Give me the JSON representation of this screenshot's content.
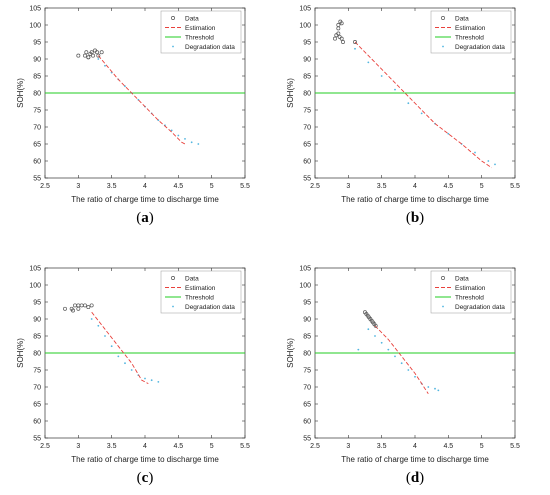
{
  "chart_data": [
    {
      "type": "scatter",
      "panel_label": "a",
      "xlabel": "The ratio of charge time to discharge time",
      "ylabel": "SOH(%)",
      "xlim": [
        2.5,
        5.5
      ],
      "ylim": [
        55,
        105
      ],
      "xticks": [
        2.5,
        3,
        3.5,
        4,
        4.5,
        5,
        5.5
      ],
      "yticks": [
        55,
        60,
        65,
        70,
        75,
        80,
        85,
        90,
        95,
        100,
        105
      ],
      "threshold": 80,
      "legend": [
        "Data",
        "Estimation",
        "Threshold",
        "Degradation data"
      ],
      "legend_position": "top-right",
      "series": [
        {
          "name": "Data",
          "x": [
            3.0,
            3.1,
            3.12,
            3.15,
            3.18,
            3.2,
            3.22,
            3.25,
            3.28,
            3.3,
            3.15,
            3.35
          ],
          "y": [
            91,
            91,
            92,
            90.5,
            91.5,
            92,
            91,
            92.5,
            92,
            91,
            90.5,
            92
          ]
        },
        {
          "name": "Estimation",
          "x": [
            3.3,
            3.6,
            3.9,
            4.2,
            4.4,
            4.55,
            4.6
          ],
          "y": [
            91,
            84,
            78,
            72,
            68.5,
            65.5,
            65
          ]
        },
        {
          "name": "Threshold",
          "x": [
            2.5,
            5.5
          ],
          "y": [
            80,
            80
          ]
        },
        {
          "name": "Degradation data",
          "x": [
            3.3,
            3.4,
            3.5,
            3.6,
            3.7,
            3.8,
            3.9,
            4.0,
            4.1,
            4.2,
            4.3,
            4.4,
            4.5,
            4.6,
            4.7,
            4.8
          ],
          "y": [
            90,
            88,
            86,
            84,
            82,
            80,
            78,
            76,
            74,
            72,
            70.5,
            69,
            67.5,
            66.5,
            65.5,
            65
          ]
        }
      ]
    },
    {
      "type": "scatter",
      "panel_label": "b",
      "xlabel": "The ratio of charge time to discharge time",
      "ylabel": "SOH(%)",
      "xlim": [
        2.5,
        5.5
      ],
      "ylim": [
        55,
        105
      ],
      "xticks": [
        2.5,
        3,
        3.5,
        4,
        4.5,
        5,
        5.5
      ],
      "yticks": [
        55,
        60,
        65,
        70,
        75,
        80,
        85,
        90,
        95,
        100,
        105
      ],
      "threshold": 80,
      "legend": [
        "Data",
        "Estimation",
        "Threshold",
        "Degradation data"
      ],
      "legend_position": "top-right",
      "series": [
        {
          "name": "Data",
          "x": [
            2.8,
            2.82,
            2.85,
            2.85,
            2.88,
            2.9,
            2.85,
            2.87,
            2.9,
            2.92,
            3.1
          ],
          "y": [
            96,
            97,
            99,
            100,
            101,
            100.5,
            97.5,
            96.5,
            96,
            95,
            95
          ]
        },
        {
          "name": "Estimation",
          "x": [
            3.1,
            3.5,
            3.9,
            4.3,
            4.7,
            5.0,
            5.15
          ],
          "y": [
            95,
            87,
            79,
            71,
            65,
            60,
            58
          ]
        },
        {
          "name": "Threshold",
          "x": [
            2.5,
            5.5
          ],
          "y": [
            80,
            80
          ]
        },
        {
          "name": "Degradation data",
          "x": [
            3.1,
            3.3,
            3.5,
            3.7,
            3.9,
            4.1,
            4.3,
            4.5,
            4.7,
            4.9,
            5.1,
            5.2
          ],
          "y": [
            93,
            89,
            85,
            81,
            77,
            74,
            71,
            68,
            65,
            62.5,
            60,
            59
          ]
        }
      ]
    },
    {
      "type": "scatter",
      "panel_label": "c",
      "xlabel": "The ratio of charge time to discharge time",
      "ylabel": "SOH(%)",
      "xlim": [
        2.5,
        5.5
      ],
      "ylim": [
        55,
        105
      ],
      "xticks": [
        2.5,
        3,
        3.5,
        4,
        4.5,
        5,
        5.5
      ],
      "yticks": [
        55,
        60,
        65,
        70,
        75,
        80,
        85,
        90,
        95,
        100,
        105
      ],
      "threshold": 80,
      "legend": [
        "Data",
        "Estimation",
        "Threshold",
        "Degradation data"
      ],
      "legend_position": "top-right",
      "series": [
        {
          "name": "Data",
          "x": [
            2.8,
            2.9,
            2.95,
            3.0,
            3.05,
            3.1,
            3.15,
            3.2,
            3.0,
            2.92
          ],
          "y": [
            93,
            93,
            94,
            94,
            94,
            94,
            93.5,
            94,
            93,
            92.5
          ]
        },
        {
          "name": "Estimation",
          "x": [
            3.2,
            3.4,
            3.6,
            3.8,
            3.95,
            4.05
          ],
          "y": [
            92,
            87,
            82,
            77,
            72,
            71
          ]
        },
        {
          "name": "Threshold",
          "x": [
            2.5,
            5.5
          ],
          "y": [
            80,
            80
          ]
        },
        {
          "name": "Degradation data",
          "x": [
            3.2,
            3.3,
            3.4,
            3.5,
            3.6,
            3.7,
            3.8,
            3.9,
            4.0,
            4.1,
            4.2
          ],
          "y": [
            90,
            88,
            85,
            82,
            79,
            77,
            75,
            73.5,
            72.5,
            72,
            71.5
          ]
        }
      ]
    },
    {
      "type": "scatter",
      "panel_label": "d",
      "xlabel": "The ratio of charge time to discharge time",
      "ylabel": "SOH(%)",
      "xlim": [
        2.5,
        5.5
      ],
      "ylim": [
        55,
        105
      ],
      "xticks": [
        2.5,
        3,
        3.5,
        4,
        4.5,
        5,
        5.5
      ],
      "yticks": [
        55,
        60,
        65,
        70,
        75,
        80,
        85,
        90,
        95,
        100,
        105
      ],
      "threshold": 80,
      "legend": [
        "Data",
        "Estimation",
        "Threshold",
        "Degradation data"
      ],
      "legend_position": "top-right",
      "series": [
        {
          "name": "Data",
          "x": [
            3.25,
            3.27,
            3.29,
            3.31,
            3.33,
            3.35,
            3.37,
            3.39,
            3.41
          ],
          "y": [
            92,
            91.5,
            91,
            90.5,
            90,
            89.5,
            89,
            88.5,
            88
          ]
        },
        {
          "name": "Estimation",
          "x": [
            3.4,
            3.6,
            3.8,
            4.0,
            4.1,
            4.2
          ],
          "y": [
            88,
            84,
            79,
            74,
            71,
            68
          ]
        },
        {
          "name": "Threshold",
          "x": [
            2.5,
            5.5
          ],
          "y": [
            80,
            80
          ]
        },
        {
          "name": "Degradation data",
          "x": [
            3.15,
            3.3,
            3.4,
            3.5,
            3.6,
            3.7,
            3.8,
            3.9,
            4.0,
            4.1,
            4.2,
            4.3,
            4.35
          ],
          "y": [
            81,
            87,
            85,
            83,
            81,
            79,
            77,
            75,
            73,
            71,
            70,
            69.5,
            69
          ]
        }
      ]
    }
  ]
}
